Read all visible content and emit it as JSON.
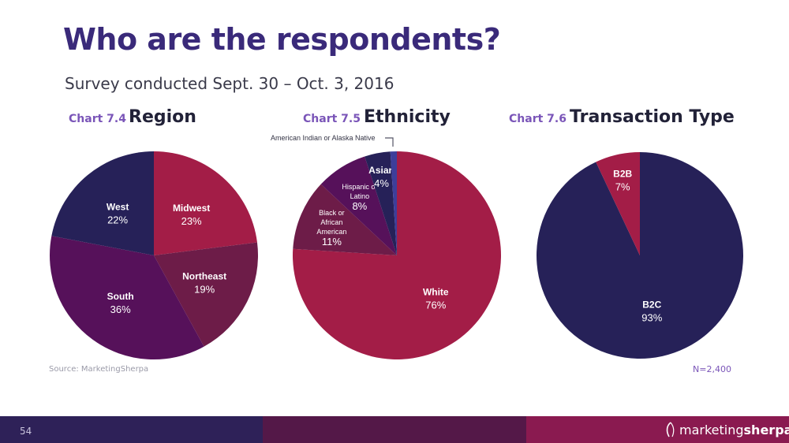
{
  "title": "Who are the respondents?",
  "subtitle": "Survey conducted Sept. 30 – Oct. 3, 2016",
  "source": "Source: MarketingSherpa",
  "sample_size": "N=2,400",
  "page_number": "54",
  "brand": {
    "regular": "marketing",
    "bold": "sherpa",
    "icon": "sherpa-logo-icon"
  },
  "footer_colors": [
    "#2e2158",
    "#541848",
    "#8a1a50"
  ],
  "charts": [
    {
      "number": "Chart 7.4",
      "heading": "Region"
    },
    {
      "number": "Chart 7.5",
      "heading": "Ethnicity"
    },
    {
      "number": "Chart 7.6",
      "heading": "Transaction Type"
    }
  ],
  "chart_data": [
    {
      "type": "pie",
      "title": "Region",
      "slices": [
        {
          "label": "Midwest",
          "value": 23,
          "display": "23%",
          "color": "#a31d47"
        },
        {
          "label": "Northeast",
          "value": 19,
          "display": "19%",
          "color": "#6d1c48"
        },
        {
          "label": "South",
          "value": 36,
          "display": "36%",
          "color": "#56115a"
        },
        {
          "label": "West",
          "value": 22,
          "display": "22%",
          "color": "#262158"
        }
      ]
    },
    {
      "type": "pie",
      "title": "Ethnicity",
      "slices": [
        {
          "label": "White",
          "value": 76,
          "display": "76%",
          "color": "#a31d47"
        },
        {
          "label": "Black or African American",
          "value": 11,
          "display": "11%",
          "color": "#6d1c48"
        },
        {
          "label": "Hispanic or Latino",
          "value": 8,
          "display": "8%",
          "color": "#56115a"
        },
        {
          "label": "Asian",
          "value": 4,
          "display": "4%",
          "color": "#262158"
        },
        {
          "label": "American Indian or Alaska Native",
          "value": 1,
          "display": "",
          "color": "#3d3e9a"
        }
      ]
    },
    {
      "type": "pie",
      "title": "Transaction Type",
      "slices": [
        {
          "label": "B2C",
          "value": 93,
          "display": "93%",
          "color": "#262158"
        },
        {
          "label": "B2B",
          "value": 7,
          "display": "7%",
          "color": "#a31d47"
        }
      ]
    }
  ]
}
